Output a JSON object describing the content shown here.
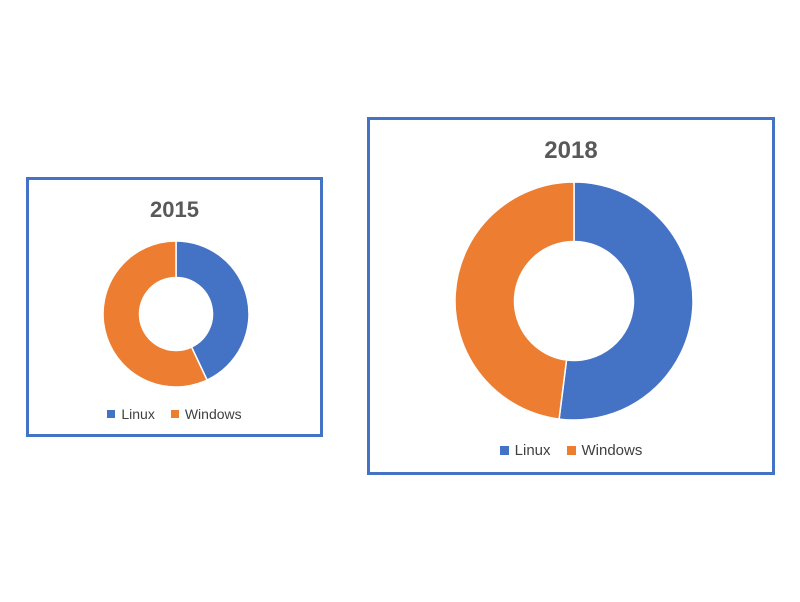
{
  "colors": {
    "linux": "#4472c4",
    "windows": "#ed7d31"
  },
  "chart_data": [
    {
      "type": "pie",
      "style": "donut",
      "title": "2015",
      "categories": [
        "Linux",
        "Windows"
      ],
      "values": [
        43,
        57
      ],
      "legend_position": "bottom"
    },
    {
      "type": "pie",
      "style": "donut",
      "title": "2018",
      "categories": [
        "Linux",
        "Windows"
      ],
      "values": [
        52,
        48
      ],
      "legend_position": "bottom"
    }
  ]
}
